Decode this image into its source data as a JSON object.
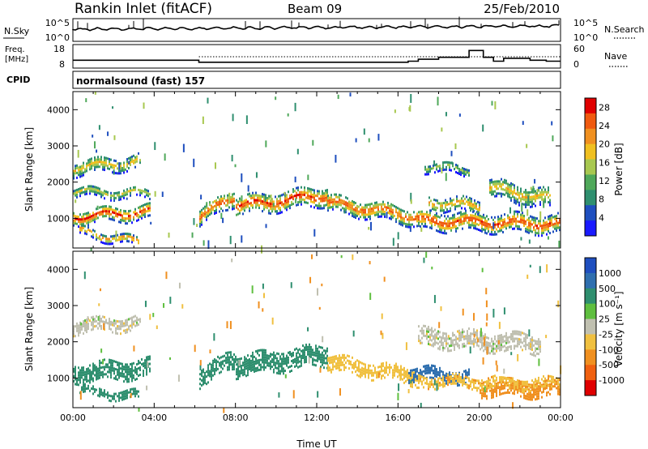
{
  "header": {
    "station": "Rankin Inlet (fitACF)",
    "beam": "Beam 09",
    "date": "25/Feb/2010"
  },
  "noise_panel": {
    "left_label": "N.Sky",
    "right_label": "N.Search",
    "left_ticks": [
      "10^5",
      "10^0"
    ],
    "right_ticks": [
      "10^5",
      "10^0"
    ]
  },
  "freq_panel": {
    "left_label_1": "Freq.",
    "left_label_2": "[MHz]",
    "right_label": "Nave",
    "left_ticks": [
      "18",
      "8"
    ],
    "right_ticks": [
      "60",
      "0"
    ]
  },
  "cpid": {
    "label": "CPID",
    "value": "normalsound (fast) 157"
  },
  "colors": {
    "power": [
      "#1a1aff",
      "#1f4fbf",
      "#2f8f6f",
      "#4fa85a",
      "#a8c850",
      "#f0c020",
      "#f09020",
      "#f05a10",
      "#e00000"
    ],
    "velocity": [
      "#1f4fbf",
      "#2f6faf",
      "#2f8f6f",
      "#5fbf3f",
      "#c0c0b0",
      "#f0c040",
      "#f09020",
      "#f06010",
      "#e00000"
    ]
  },
  "chart_data": [
    {
      "type": "heatmap",
      "name": "power",
      "ylabel": "Slant Range [km]",
      "xlim": [
        0,
        24
      ],
      "ylim": [
        180,
        4500
      ],
      "yticks": [
        "1000",
        "2000",
        "3000",
        "4000"
      ],
      "colorbar": {
        "label": "Power [dB]",
        "ticks": [
          "4",
          "8",
          "12",
          "16",
          "20",
          "24",
          "28"
        ],
        "range": [
          0,
          30
        ]
      },
      "bands": [
        {
          "x": [
            0.0,
            3.8
          ],
          "center": [
            1000,
            1150
          ],
          "thickness": 380,
          "peak": 28
        },
        {
          "x": [
            0.0,
            3.3
          ],
          "center": [
            2350,
            2550
          ],
          "thickness": 380,
          "peak": 20
        },
        {
          "x": [
            0.0,
            3.8
          ],
          "center": [
            1700,
            1650
          ],
          "thickness": 260,
          "peak": 16
        },
        {
          "x": [
            0.3,
            3.2
          ],
          "center": [
            600,
            300
          ],
          "thickness": 220,
          "peak": 24
        },
        {
          "x": [
            6.2,
            7.9
          ],
          "center": [
            1000,
            1550
          ],
          "thickness": 460,
          "peak": 26
        },
        {
          "x": [
            8.0,
            12.5
          ],
          "center": [
            1300,
            1600
          ],
          "thickness": 500,
          "peak": 28
        },
        {
          "x": [
            12.5,
            17.0
          ],
          "center": [
            1400,
            1000
          ],
          "thickness": 460,
          "peak": 26
        },
        {
          "x": [
            17.0,
            24.0
          ],
          "center": [
            900,
            800
          ],
          "thickness": 480,
          "peak": 28
        },
        {
          "x": [
            17.5,
            20.0
          ],
          "center": [
            1400,
            1300
          ],
          "thickness": 360,
          "peak": 22
        },
        {
          "x": [
            20.5,
            23.5
          ],
          "center": [
            1800,
            1500
          ],
          "thickness": 520,
          "peak": 20
        },
        {
          "x": [
            17.3,
            19.5
          ],
          "center": [
            2400,
            2300
          ],
          "thickness": 260,
          "peak": 14
        }
      ]
    },
    {
      "type": "heatmap",
      "name": "velocity",
      "xlabel": "Time UT",
      "ylabel": "Slant Range [km]",
      "xlim": [
        0,
        24
      ],
      "ylim": [
        180,
        4500
      ],
      "xticks": [
        "00:00",
        "04:00",
        "08:00",
        "12:00",
        "16:00",
        "20:00",
        "00:00"
      ],
      "yticks": [
        "1000",
        "2000",
        "3000",
        "4000"
      ],
      "colorbar": {
        "label": "Velocity [m s⁻¹]",
        "ticks": [
          "1000",
          "500",
          "100",
          "25",
          "-25",
          "-100",
          "-500",
          "-1000"
        ]
      },
      "bands": [
        {
          "x": [
            0.0,
            3.8
          ],
          "center": [
            1100,
            1250
          ],
          "thickness": 500,
          "velocity": 250
        },
        {
          "x": [
            0.0,
            3.3
          ],
          "center": [
            2400,
            2500
          ],
          "thickness": 380,
          "velocity": 0
        },
        {
          "x": [
            0.3,
            3.2
          ],
          "center": [
            600,
            500
          ],
          "thickness": 260,
          "velocity": 300
        },
        {
          "x": [
            6.2,
            8.0
          ],
          "center": [
            1000,
            1500
          ],
          "thickness": 500,
          "velocity": 200
        },
        {
          "x": [
            8.0,
            12.5
          ],
          "center": [
            1300,
            1600
          ],
          "thickness": 550,
          "velocity": 150
        },
        {
          "x": [
            12.5,
            17.0
          ],
          "center": [
            1400,
            1000
          ],
          "thickness": 450,
          "velocity": -60
        },
        {
          "x": [
            16.5,
            19.5
          ],
          "center": [
            1100,
            1000
          ],
          "thickness": 360,
          "velocity": 600
        },
        {
          "x": [
            17.0,
            23.0
          ],
          "center": [
            2100,
            1900
          ],
          "thickness": 500,
          "velocity": 0
        },
        {
          "x": [
            20.0,
            24.0
          ],
          "center": [
            700,
            650
          ],
          "thickness": 420,
          "velocity": -300
        },
        {
          "x": [
            17.0,
            24.0
          ],
          "center": [
            900,
            800
          ],
          "thickness": 300,
          "velocity": -80
        }
      ]
    }
  ]
}
